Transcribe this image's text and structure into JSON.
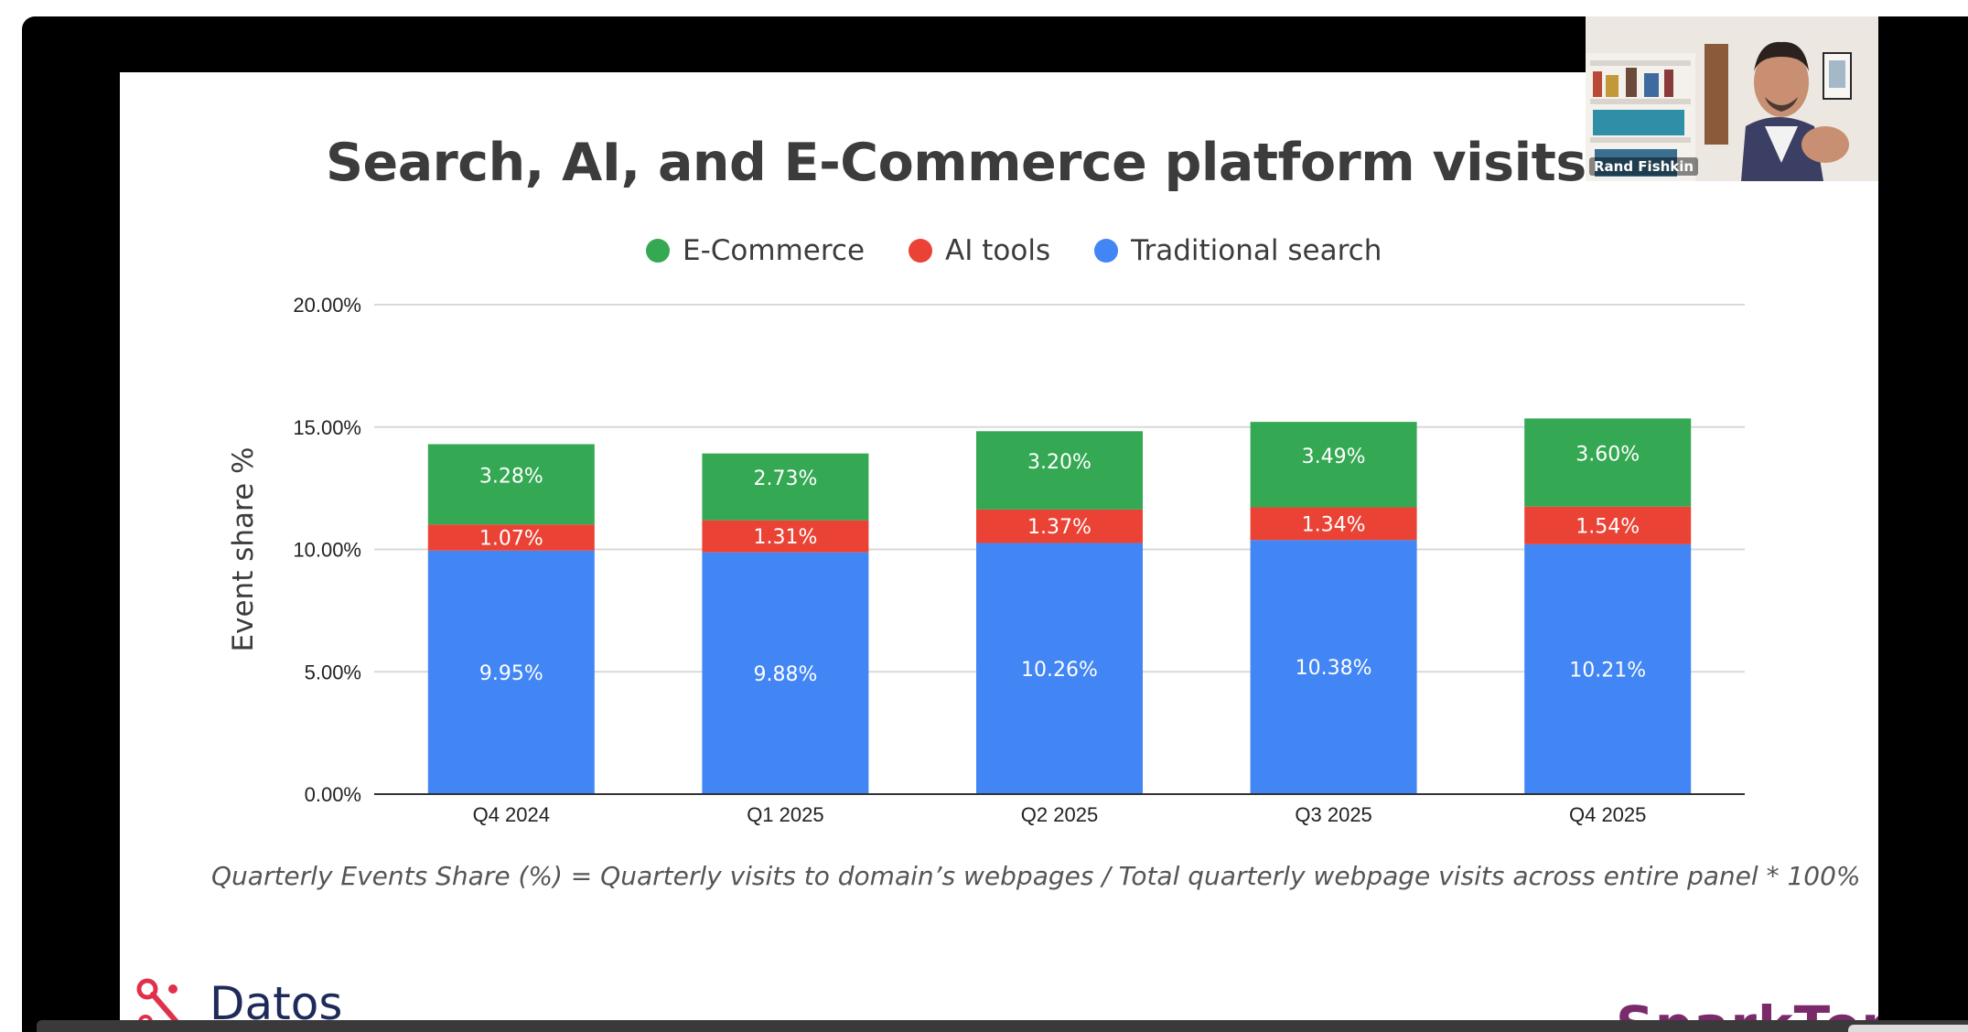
{
  "slide": {
    "title": "Search, AI, and E-Commerce platform visits in the US",
    "formula": "Quarterly Events Share (%) = Quarterly visits to domain’s webpages / Total quarterly webpage visits across entire panel * 100%",
    "brand_left": "Datos",
    "brand_right": "SparkToro"
  },
  "legend": [
    {
      "label": "E-Commerce",
      "color": "#34a853"
    },
    {
      "label": "AI tools",
      "color": "#ea4335"
    },
    {
      "label": "Traditional search",
      "color": "#4285f4"
    }
  ],
  "webcam": {
    "participant_name": "Rand Fishkin"
  },
  "chart_data": {
    "type": "bar",
    "stacked": true,
    "categories": [
      "Q4 2024",
      "Q1 2025",
      "Q2 2025",
      "Q3 2025",
      "Q4 2025"
    ],
    "series": [
      {
        "name": "Traditional search",
        "color": "#4285f4",
        "values": [
          9.95,
          9.88,
          10.26,
          10.38,
          10.21
        ],
        "labels": [
          "9.95%",
          "9.88%",
          "10.26%",
          "10.38%",
          "10.21%"
        ]
      },
      {
        "name": "AI tools",
        "color": "#ea4335",
        "values": [
          1.07,
          1.31,
          1.37,
          1.34,
          1.54
        ],
        "labels": [
          "1.07%",
          "1.31%",
          "1.37%",
          "1.34%",
          "1.54%"
        ]
      },
      {
        "name": "E-Commerce",
        "color": "#34a853",
        "values": [
          3.28,
          2.73,
          3.2,
          3.49,
          3.6
        ],
        "labels": [
          "3.28%",
          "2.73%",
          "3.20%",
          "3.49%",
          "3.60%"
        ]
      }
    ],
    "ylabel": "Event share %",
    "xlabel": "",
    "ylim": [
      0,
      20
    ],
    "yticks": [
      0,
      5,
      10,
      15,
      20
    ],
    "ytick_labels": [
      "0.00%",
      "5.00%",
      "10.00%",
      "15.00%",
      "20.00%"
    ],
    "grid": true,
    "legend_position": "top"
  }
}
